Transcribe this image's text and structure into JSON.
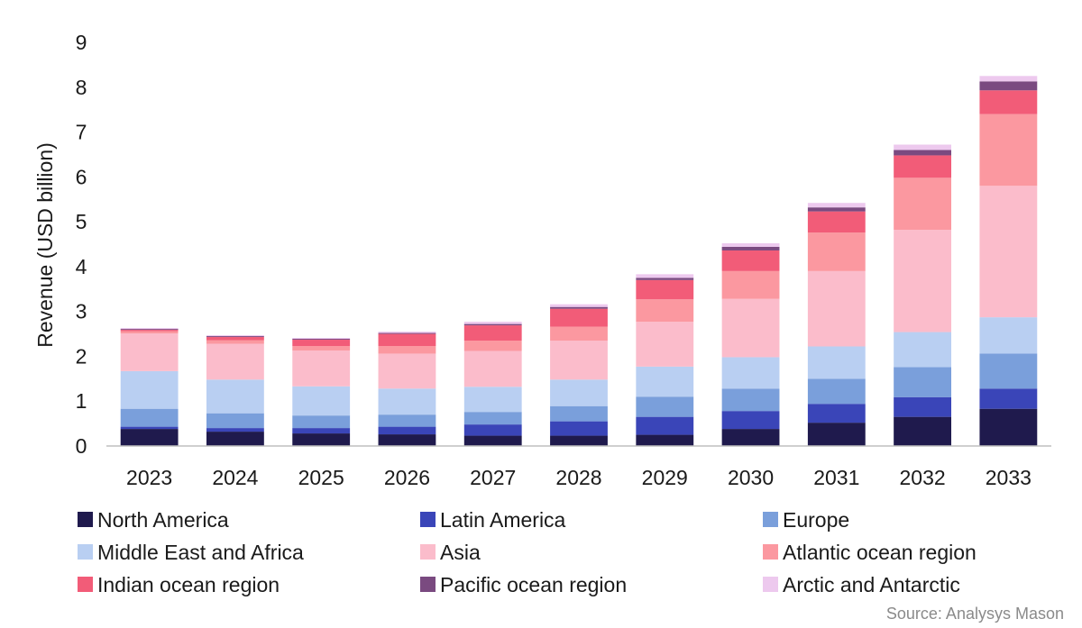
{
  "chart_data": {
    "type": "bar",
    "stacked": true,
    "title": "",
    "xlabel": "",
    "ylabel": "Revenue (USD billion)",
    "ylim": [
      0,
      9
    ],
    "yticks": [
      0,
      1,
      2,
      3,
      4,
      5,
      6,
      7,
      8,
      9
    ],
    "grid": false,
    "legend_position": "bottom",
    "source": "Source: Analysys Mason",
    "categories": [
      "2023",
      "2024",
      "2025",
      "2026",
      "2027",
      "2028",
      "2029",
      "2030",
      "2031",
      "2032",
      "2033"
    ],
    "series": [
      {
        "name": "North America",
        "color": "#1f1a4d",
        "values": [
          0.38,
          0.32,
          0.28,
          0.26,
          0.23,
          0.23,
          0.25,
          0.38,
          0.52,
          0.65,
          0.83
        ]
      },
      {
        "name": "Latin America",
        "color": "#3a45b8",
        "values": [
          0.05,
          0.08,
          0.12,
          0.17,
          0.25,
          0.32,
          0.4,
          0.4,
          0.42,
          0.44,
          0.45
        ]
      },
      {
        "name": "Europe",
        "color": "#7a9fdb",
        "values": [
          0.4,
          0.33,
          0.28,
          0.27,
          0.28,
          0.34,
          0.45,
          0.5,
          0.56,
          0.67,
          0.78
        ]
      },
      {
        "name": "Middle East and Africa",
        "color": "#b9cff2",
        "values": [
          0.84,
          0.75,
          0.65,
          0.58,
          0.56,
          0.59,
          0.67,
          0.7,
          0.72,
          0.78,
          0.81
        ]
      },
      {
        "name": "Asia",
        "color": "#fbbccb",
        "values": [
          0.84,
          0.8,
          0.8,
          0.78,
          0.8,
          0.87,
          1.0,
          1.3,
          1.68,
          2.28,
          2.93
        ]
      },
      {
        "name": "Atlantic ocean region",
        "color": "#fb98a0",
        "values": [
          0.05,
          0.08,
          0.1,
          0.17,
          0.23,
          0.31,
          0.5,
          0.62,
          0.86,
          1.16,
          1.6
        ]
      },
      {
        "name": "Indian ocean region",
        "color": "#f25c78",
        "values": [
          0.03,
          0.07,
          0.14,
          0.27,
          0.34,
          0.4,
          0.43,
          0.46,
          0.47,
          0.5,
          0.53
        ]
      },
      {
        "name": "Pacific ocean region",
        "color": "#7a4a80",
        "values": [
          0.02,
          0.02,
          0.02,
          0.02,
          0.03,
          0.04,
          0.05,
          0.08,
          0.09,
          0.12,
          0.2
        ]
      },
      {
        "name": "Arctic and Antarctic",
        "color": "#edc9ee",
        "values": [
          0.02,
          0.02,
          0.02,
          0.03,
          0.05,
          0.06,
          0.08,
          0.08,
          0.1,
          0.12,
          0.12
        ]
      }
    ]
  }
}
